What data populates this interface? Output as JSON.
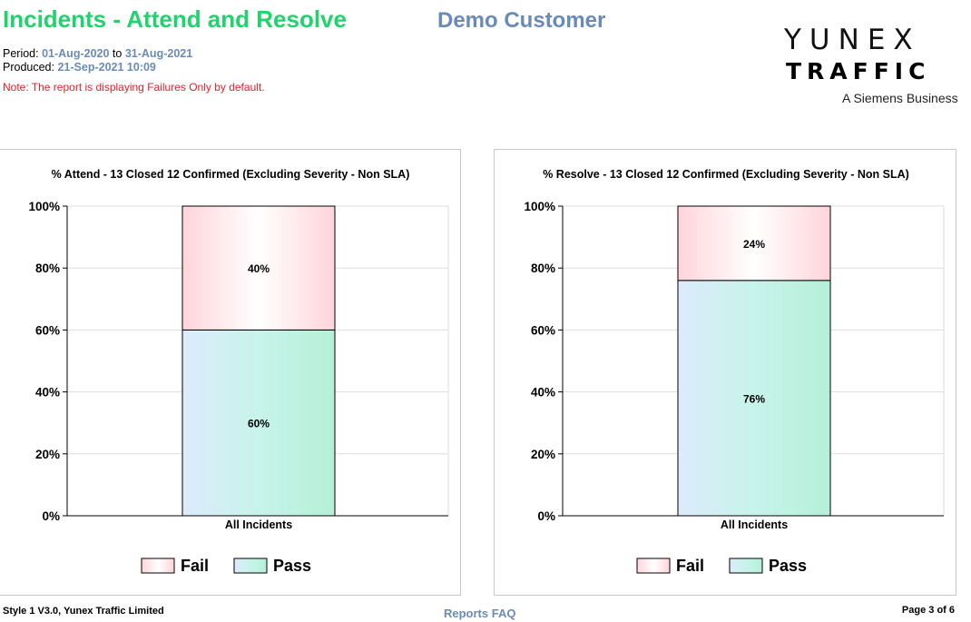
{
  "header": {
    "title": "Incidents - Attend and Resolve",
    "customer": "Demo Customer",
    "period_label": "Period:",
    "period_from": "01-Aug-2020",
    "period_to_word": "to",
    "period_to": "31-Aug-2021",
    "produced_label": "Produced:",
    "produced_value": "21-Sep-2021 10:09",
    "note": "Note: The report is displaying Failures Only by default."
  },
  "logo": {
    "line1": "YUNEX",
    "line2": "TRAFFIC",
    "line3": "A Siemens Business"
  },
  "colors": {
    "title": "#21d36c",
    "accent": "#6a8bb7",
    "note": "#e8202a",
    "fail": "#ffd4da",
    "pass": "#bff2e2"
  },
  "chart_data": [
    {
      "type": "bar",
      "stacked": true,
      "title": "% Attend - 13 Closed 12 Confirmed (Excluding Severity - Non SLA)",
      "categories": [
        "All Incidents"
      ],
      "series": [
        {
          "name": "Pass",
          "values": [
            60
          ],
          "label": "60%"
        },
        {
          "name": "Fail",
          "values": [
            40
          ],
          "label": "40%"
        }
      ],
      "ylim": [
        0,
        100
      ],
      "yticks": [
        "0%",
        "20%",
        "40%",
        "60%",
        "80%",
        "100%"
      ],
      "grid": true,
      "legend": "bottom"
    },
    {
      "type": "bar",
      "stacked": true,
      "title": "% Resolve - 13 Closed 12 Confirmed (Excluding Severity - Non SLA)",
      "categories": [
        "All Incidents"
      ],
      "series": [
        {
          "name": "Pass",
          "values": [
            76
          ],
          "label": "76%"
        },
        {
          "name": "Fail",
          "values": [
            24
          ],
          "label": "24%"
        }
      ],
      "ylim": [
        0,
        100
      ],
      "yticks": [
        "0%",
        "20%",
        "40%",
        "60%",
        "80%",
        "100%"
      ],
      "grid": true,
      "legend": "bottom"
    }
  ],
  "footer": {
    "left": "Style 1 V3.0, Yunex Traffic Limited",
    "center": "Reports FAQ",
    "right": "Page 3 of 6"
  }
}
